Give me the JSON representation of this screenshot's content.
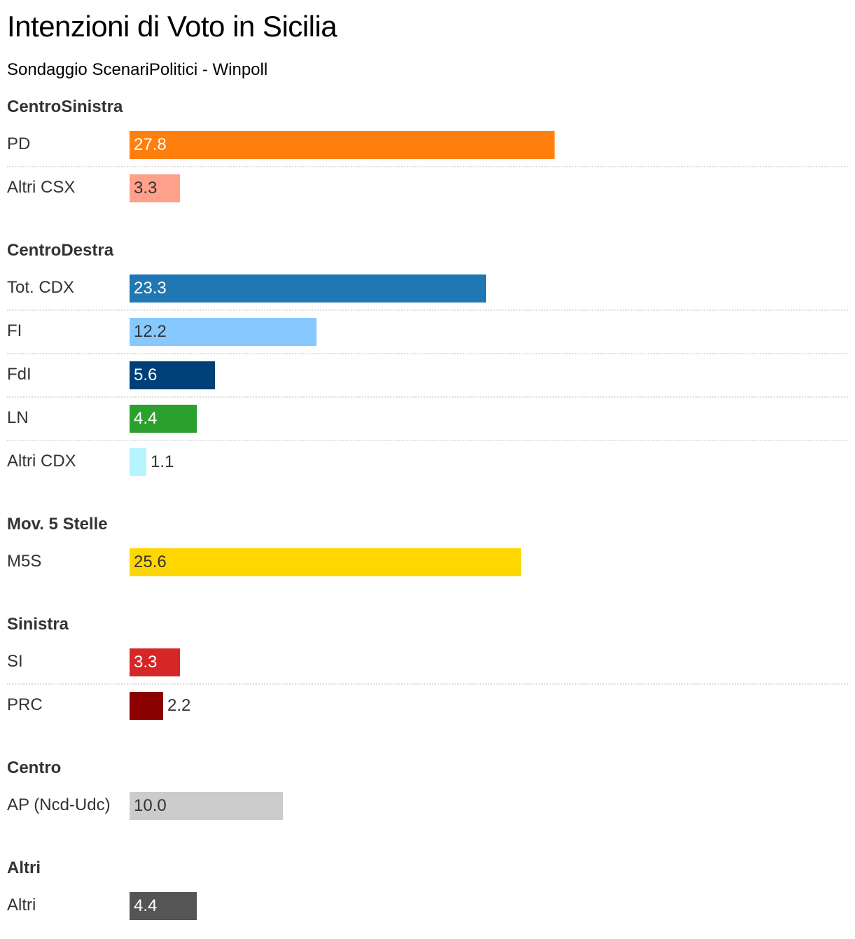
{
  "title": "Intenzioni di Voto in Sicilia",
  "subtitle": "Sondaggio ScenariPolitici - Winpoll",
  "chart_data": {
    "type": "bar",
    "orientation": "horizontal",
    "groups": [
      {
        "name": "CentroSinistra",
        "items": [
          {
            "label": "PD",
            "value": 27.8,
            "color": "#ff7f0e",
            "value_color": "#ffffff"
          },
          {
            "label": "Altri CSX",
            "value": 3.3,
            "color": "#ffa08a",
            "value_color": "#333333"
          }
        ]
      },
      {
        "name": "CentroDestra",
        "items": [
          {
            "label": "Tot. CDX",
            "value": 23.3,
            "color": "#1f77b4",
            "value_color": "#ffffff"
          },
          {
            "label": "FI",
            "value": 12.2,
            "color": "#87c8ff",
            "value_color": "#333333"
          },
          {
            "label": "FdI",
            "value": 5.6,
            "color": "#003f78",
            "value_color": "#ffffff"
          },
          {
            "label": "LN",
            "value": 4.4,
            "color": "#2ca02c",
            "value_color": "#ffffff"
          },
          {
            "label": "Altri CDX",
            "value": 1.1,
            "color": "#b8f4ff",
            "value_color": "#333333"
          }
        ]
      },
      {
        "name": "Mov. 5 Stelle",
        "items": [
          {
            "label": "M5S",
            "value": 25.6,
            "color": "#ffd700",
            "value_color": "#333333"
          }
        ]
      },
      {
        "name": "Sinistra",
        "items": [
          {
            "label": "SI",
            "value": 3.3,
            "color": "#d62728",
            "value_color": "#ffffff"
          },
          {
            "label": "PRC",
            "value": 2.2,
            "color": "#8b0000",
            "value_color": "#ffffff"
          }
        ]
      },
      {
        "name": "Centro",
        "items": [
          {
            "label": "AP (Ncd-Udc)",
            "value": 10.0,
            "color": "#cccccc",
            "value_color": "#333333"
          }
        ]
      },
      {
        "name": "Altri",
        "items": [
          {
            "label": "Altri",
            "value": 4.4,
            "color": "#555555",
            "value_color": "#ffffff"
          }
        ]
      }
    ]
  }
}
